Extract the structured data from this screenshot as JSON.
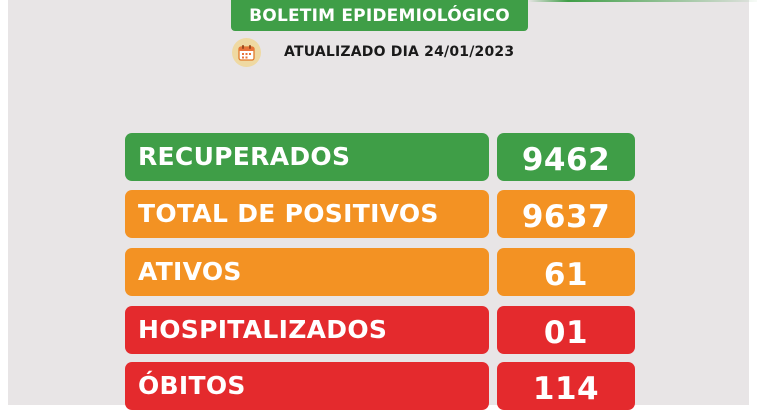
{
  "header": {
    "title": "BOLETIM EPIDEMIOLÓGICO",
    "updated": "ATUALIZADO DIA 24/01/2023",
    "icon": "calendar-icon"
  },
  "colors": {
    "background": "#e8e5e6",
    "green": "#3f9e47",
    "orange": "#f39223",
    "red": "#e42a2d",
    "top_bar": "#3f9e47",
    "icon_bg": "#efd9a2"
  },
  "stats": [
    {
      "label": "RECUPERADOS",
      "value": "9462",
      "color": "#3f9e47"
    },
    {
      "label": "TOTAL DE POSITIVOS",
      "value": "9637",
      "color": "#f39223"
    },
    {
      "label": "ATIVOS",
      "value": "61",
      "color": "#f39223"
    },
    {
      "label": "HOSPITALIZADOS",
      "value": "01",
      "color": "#e42a2d"
    },
    {
      "label": "ÓBITOS",
      "value": "114",
      "color": "#e42a2d"
    }
  ]
}
